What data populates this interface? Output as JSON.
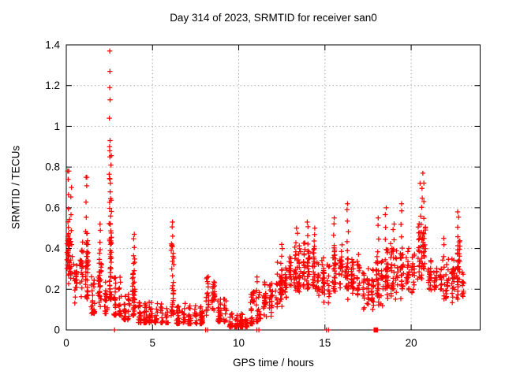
{
  "figure": {
    "background": "#ffffff",
    "title": "Day 314 of 2023, SRMTID for receiver san0"
  },
  "colors": {
    "marker": "#ff0000",
    "grid": "#b0b0b0",
    "frame": "#000000",
    "text": "#000000",
    "background": "#ffffff"
  },
  "chart_data": {
    "type": "scatter",
    "title": "Day 314 of 2023, SRMTID for receiver san0",
    "xlabel": "GPS time / hours",
    "ylabel": "SRMTID / TECUs",
    "xlim": [
      0,
      24
    ],
    "ylim": [
      0,
      1.4
    ],
    "xticks": {
      "values": [
        0,
        5,
        10,
        15,
        20
      ],
      "labels": [
        "0",
        "5",
        "10",
        "15",
        "20"
      ]
    },
    "yticks": {
      "values": [
        0,
        0.2,
        0.4,
        0.6,
        0.8,
        1,
        1.2,
        1.4
      ],
      "labels": [
        "0",
        "0.2",
        "0.4",
        "0.6",
        "0.8",
        "1",
        "1.2",
        "1.4"
      ]
    },
    "grid": "dotted",
    "legend": false,
    "marker": "+",
    "marker_color": "#ff0000",
    "description": "Dense scatter of ~2000 red plus markers; high variance 0-3h with spike to 1.37 TECU near 2.5h, quiet minimum ~0.05 TECU near 10h, rising activity 12-23h with peaks ~0.6-0.77 TECU near 16h and 20.6h; isolated points on the zero line near 2.8, 8.1, 11.1, 15.1 and 18.0h",
    "band_segments": [
      [
        0.0,
        0.35,
        40,
        0.2,
        0.58,
        "mid"
      ],
      [
        0.35,
        0.7,
        22,
        0.1,
        0.38,
        "mid"
      ],
      [
        0.7,
        1.05,
        20,
        0.14,
        0.46,
        "mid"
      ],
      [
        1.05,
        1.35,
        30,
        0.12,
        0.52,
        "mid"
      ],
      [
        1.35,
        1.75,
        24,
        0.08,
        0.28,
        "low"
      ],
      [
        1.75,
        2.15,
        26,
        0.1,
        0.42,
        "mid"
      ],
      [
        2.15,
        2.45,
        18,
        0.08,
        0.24,
        "low"
      ],
      [
        2.45,
        2.68,
        30,
        0.15,
        0.8,
        "low"
      ],
      [
        2.68,
        3.25,
        42,
        0.07,
        0.26,
        "low"
      ],
      [
        3.25,
        3.75,
        32,
        0.05,
        0.2,
        "low"
      ],
      [
        3.75,
        4.1,
        24,
        0.07,
        0.4,
        "low"
      ],
      [
        4.1,
        6.0,
        105,
        0.035,
        0.14,
        "low"
      ],
      [
        6.0,
        6.3,
        20,
        0.07,
        0.45,
        "low"
      ],
      [
        6.3,
        8.0,
        95,
        0.03,
        0.13,
        "low"
      ],
      [
        8.0,
        8.7,
        45,
        0.06,
        0.28,
        "mid"
      ],
      [
        8.7,
        9.4,
        42,
        0.04,
        0.16,
        "low"
      ],
      [
        9.4,
        10.6,
        75,
        0.015,
        0.085,
        "low"
      ],
      [
        10.6,
        11.35,
        42,
        0.03,
        0.2,
        "low"
      ],
      [
        11.35,
        12.05,
        48,
        0.05,
        0.26,
        "mid"
      ],
      [
        12.05,
        12.85,
        52,
        0.1,
        0.36,
        "mid"
      ],
      [
        12.85,
        13.65,
        52,
        0.14,
        0.42,
        "mid"
      ],
      [
        13.65,
        14.45,
        52,
        0.16,
        0.47,
        "mid"
      ],
      [
        14.45,
        15.35,
        52,
        0.11,
        0.4,
        "mid"
      ],
      [
        15.35,
        16.1,
        46,
        0.16,
        0.44,
        "mid"
      ],
      [
        16.1,
        17.1,
        62,
        0.14,
        0.4,
        "mid"
      ],
      [
        17.1,
        17.9,
        50,
        0.09,
        0.33,
        "mid"
      ],
      [
        17.9,
        18.45,
        36,
        0.1,
        0.38,
        "mid"
      ],
      [
        18.45,
        19.3,
        54,
        0.14,
        0.44,
        "mid"
      ],
      [
        19.3,
        20.3,
        58,
        0.14,
        0.42,
        "mid"
      ],
      [
        20.3,
        20.9,
        40,
        0.22,
        0.58,
        "mid"
      ],
      [
        20.9,
        22.6,
        90,
        0.13,
        0.37,
        "mid"
      ],
      [
        22.6,
        22.9,
        22,
        0.14,
        0.48,
        "mid"
      ],
      [
        22.9,
        23.1,
        12,
        0.15,
        0.32,
        "mid"
      ]
    ],
    "spike_columns": [
      [
        0.1,
        0.3,
        0.78,
        10,
        0.12
      ],
      [
        0.3,
        0.25,
        0.7,
        8,
        0.1
      ],
      [
        1.18,
        0.15,
        0.75,
        12,
        0.15
      ],
      [
        1.95,
        0.15,
        0.52,
        10,
        0.15
      ],
      [
        2.55,
        0.15,
        0.88,
        26,
        0.14
      ],
      [
        3.92,
        0.1,
        0.47,
        14,
        0.12
      ],
      [
        6.15,
        0.08,
        0.53,
        16,
        0.12
      ],
      [
        11.05,
        0.04,
        0.26,
        8,
        0.1
      ],
      [
        12.5,
        0.18,
        0.42,
        10,
        0.12
      ],
      [
        13.35,
        0.2,
        0.5,
        10,
        0.12
      ],
      [
        14.0,
        0.2,
        0.53,
        12,
        0.15
      ],
      [
        14.4,
        0.2,
        0.5,
        8,
        0.1
      ],
      [
        15.55,
        0.2,
        0.55,
        10,
        0.12
      ],
      [
        16.3,
        0.2,
        0.62,
        12,
        0.15
      ],
      [
        18.1,
        0.12,
        0.55,
        10,
        0.12
      ],
      [
        18.55,
        0.2,
        0.6,
        10,
        0.12
      ],
      [
        19.0,
        0.2,
        0.52,
        10,
        0.12
      ],
      [
        19.45,
        0.2,
        0.62,
        10,
        0.12
      ],
      [
        20.55,
        0.25,
        0.72,
        16,
        0.2
      ],
      [
        20.7,
        0.3,
        0.77,
        8,
        0.1
      ],
      [
        21.9,
        0.15,
        0.45,
        8,
        0.12
      ],
      [
        22.7,
        0.15,
        0.58,
        14,
        0.12
      ]
    ],
    "outlier_points": [
      [
        2.52,
        1.37
      ],
      [
        2.53,
        1.27
      ],
      [
        2.52,
        1.19
      ],
      [
        2.54,
        1.13
      ],
      [
        2.5,
        1.04
      ],
      [
        2.54,
        0.93
      ],
      [
        2.51,
        0.9
      ],
      [
        2.53,
        0.85
      ],
      [
        0.15,
        0.78
      ],
      [
        1.15,
        0.75
      ],
      [
        20.68,
        0.77
      ]
    ],
    "zero_points": [
      2.8,
      8.08,
      8.2,
      11.05,
      11.17,
      15.08,
      15.2,
      17.85,
      17.9,
      17.95,
      18.0,
      18.05
    ]
  }
}
